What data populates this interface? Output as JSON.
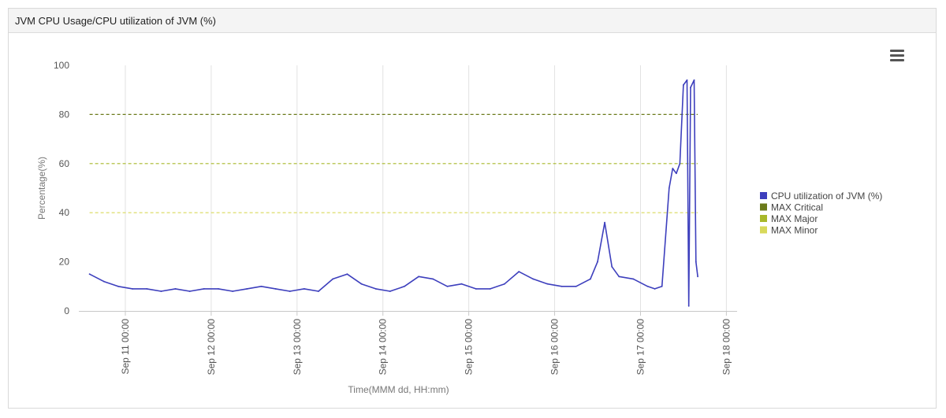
{
  "panel": {
    "title": "JVM CPU Usage/CPU utilization of JVM (%)",
    "menu_icon": "hamburger-menu-icon"
  },
  "chart_data": {
    "type": "line",
    "xlabel": "Time(MMM dd, HH:mm)",
    "ylabel": "Percentage(%)",
    "ylim": [
      0,
      100
    ],
    "yticks": [
      0,
      20,
      40,
      60,
      80,
      100
    ],
    "xlim": [
      "Sep 10 11:00",
      "Sep 18 03:00"
    ],
    "xticks": [
      "Sep 11 00:00",
      "Sep 12 00:00",
      "Sep 13 00:00",
      "Sep 14 00:00",
      "Sep 15 00:00",
      "Sep 16 00:00",
      "Sep 17 00:00",
      "Sep 18 00:00"
    ],
    "grid": "vertical",
    "legend_position": "right",
    "series": [
      {
        "name": "CPU utilization of JVM (%)",
        "color": "#3d3fbd",
        "style": "solid",
        "x": [
          "Sep 10 14:00",
          "Sep 10 18:00",
          "Sep 10 22:00",
          "Sep 11 02:00",
          "Sep 11 06:00",
          "Sep 11 10:00",
          "Sep 11 14:00",
          "Sep 11 18:00",
          "Sep 11 22:00",
          "Sep 12 02:00",
          "Sep 12 06:00",
          "Sep 12 10:00",
          "Sep 12 14:00",
          "Sep 12 18:00",
          "Sep 12 22:00",
          "Sep 13 02:00",
          "Sep 13 06:00",
          "Sep 13 10:00",
          "Sep 13 14:00",
          "Sep 13 18:00",
          "Sep 13 22:00",
          "Sep 14 02:00",
          "Sep 14 06:00",
          "Sep 14 10:00",
          "Sep 14 14:00",
          "Sep 14 18:00",
          "Sep 14 22:00",
          "Sep 15 02:00",
          "Sep 15 06:00",
          "Sep 15 10:00",
          "Sep 15 14:00",
          "Sep 15 18:00",
          "Sep 15 22:00",
          "Sep 16 02:00",
          "Sep 16 06:00",
          "Sep 16 10:00",
          "Sep 16 12:00",
          "Sep 16 14:00",
          "Sep 16 16:00",
          "Sep 16 18:00",
          "Sep 16 22:00",
          "Sep 17 02:00",
          "Sep 17 04:00",
          "Sep 17 06:00",
          "Sep 17 08:00",
          "Sep 17 09:00",
          "Sep 17 10:00",
          "Sep 17 11:00",
          "Sep 17 12:00",
          "Sep 17 13:00",
          "Sep 17 13:30",
          "Sep 17 14:00",
          "Sep 17 15:00",
          "Sep 17 15:30",
          "Sep 17 16:00"
        ],
        "values": [
          15,
          12,
          10,
          9,
          9,
          8,
          9,
          8,
          9,
          9,
          8,
          9,
          10,
          9,
          8,
          9,
          8,
          13,
          15,
          11,
          9,
          8,
          10,
          14,
          13,
          10,
          11,
          9,
          9,
          11,
          16,
          13,
          11,
          10,
          10,
          13,
          20,
          36,
          18,
          14,
          13,
          10,
          9,
          10,
          50,
          58,
          56,
          60,
          92,
          94,
          2,
          91,
          94,
          20,
          14
        ]
      },
      {
        "name": "MAX Critical",
        "color": "#6b7a1a",
        "style": "dashed",
        "value": 80
      },
      {
        "name": "MAX Major",
        "color": "#a8b82a",
        "style": "dashed",
        "value": 60
      },
      {
        "name": "MAX Minor",
        "color": "#d8d95a",
        "style": "dashed",
        "value": 40
      }
    ]
  }
}
